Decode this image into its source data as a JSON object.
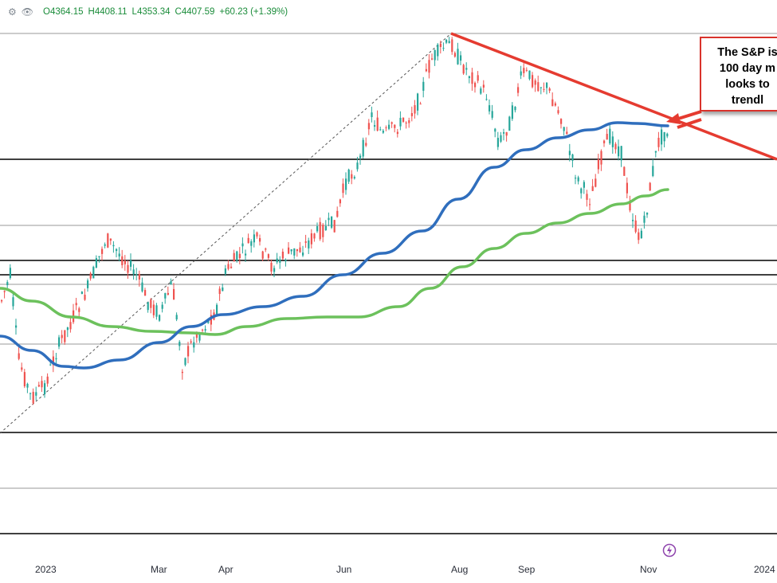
{
  "header": {
    "ohlc": {
      "open": "O4364.15",
      "high": "H4408.11",
      "low": "L4353.34",
      "close": "C4407.59",
      "change": "+60.23 (+1.39%)"
    }
  },
  "annotation": {
    "text": "The S&P is\n100 day m\nlooks to\ntrendl"
  },
  "colors": {
    "up": "#26a69a",
    "down": "#ef5350",
    "ma100": "#2f6ebd",
    "ma200": "#6cc15c",
    "trendline": "#e53b30",
    "level": "#000000",
    "grid": "#9a9a9a"
  },
  "icons": [
    "gear-icon",
    "eye-icon",
    "trading-icon"
  ],
  "chart_data": {
    "type": "candlestick",
    "x_axis": {
      "tick_labels": [
        "2023",
        "Mar",
        "Apr",
        "Jun",
        "Aug",
        "Sep",
        "Nov",
        "2024"
      ]
    },
    "y_axis": {
      "tick_labels": []
    },
    "grid": "horizontal levels",
    "overlays": [
      "100 day moving average (blue)",
      "200 day moving average (green)",
      "downward trendline (red)",
      "dashed upward line"
    ],
    "legend": "none",
    "last_bar": {
      "open": 4364.15,
      "high": 4408.11,
      "low": 4353.34,
      "close": 4407.59,
      "change": 60.23,
      "change_pct": 1.39
    }
  }
}
